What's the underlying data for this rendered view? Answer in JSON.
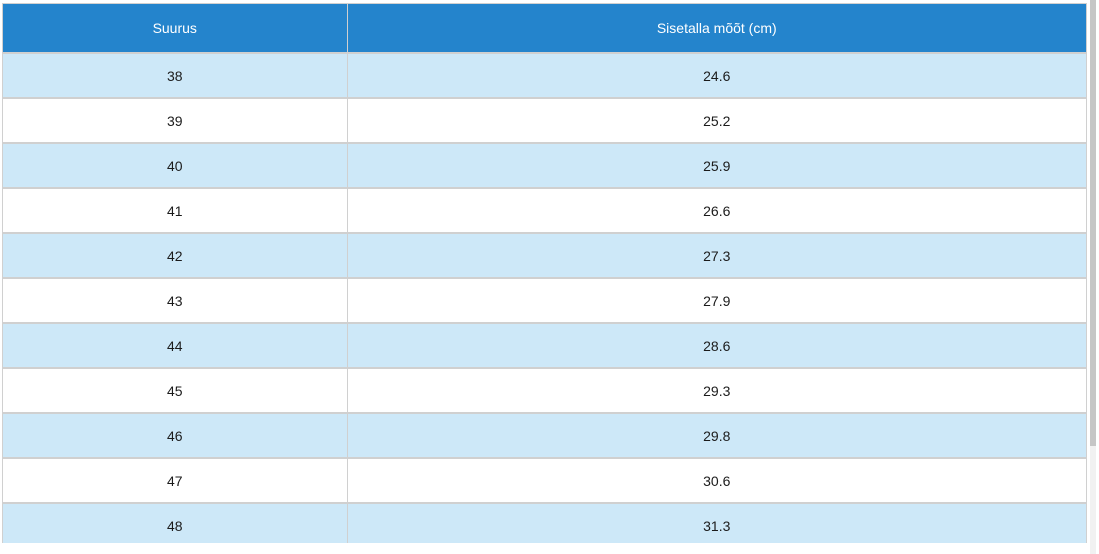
{
  "table": {
    "columns": [
      {
        "label": "Suurus"
      },
      {
        "label": "Sisetalla mõõt (cm)"
      }
    ],
    "rows": [
      {
        "size": "38",
        "insole_cm": "24.6"
      },
      {
        "size": "39",
        "insole_cm": "25.2"
      },
      {
        "size": "40",
        "insole_cm": "25.9"
      },
      {
        "size": "41",
        "insole_cm": "26.6"
      },
      {
        "size": "42",
        "insole_cm": "27.3"
      },
      {
        "size": "43",
        "insole_cm": "27.9"
      },
      {
        "size": "44",
        "insole_cm": "28.6"
      },
      {
        "size": "45",
        "insole_cm": "29.3"
      },
      {
        "size": "46",
        "insole_cm": "29.8"
      },
      {
        "size": "47",
        "insole_cm": "30.6"
      },
      {
        "size": "48",
        "insole_cm": "31.3"
      }
    ]
  },
  "colors": {
    "header_bg": "#2484cc",
    "header_text": "#ffffff",
    "row_alt_bg": "#cde8f8",
    "row_bg": "#ffffff",
    "border": "#d0d0d0",
    "cell_text": "#1b1b1b",
    "scrollbar_thumb": "#c6c6c6",
    "scrollbar_track": "#f1f1f1"
  }
}
